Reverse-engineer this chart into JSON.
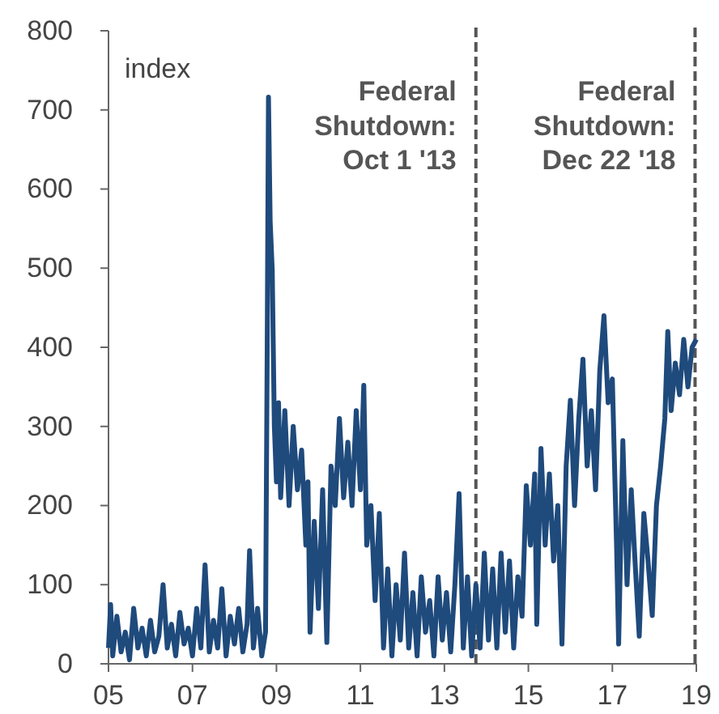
{
  "chart_data": {
    "type": "line",
    "ylabel": "index",
    "xlim": [
      2005,
      2019
    ],
    "xticks": [
      {
        "value": 2005,
        "label": "05"
      },
      {
        "value": 2007,
        "label": "07"
      },
      {
        "value": 2009,
        "label": "09"
      },
      {
        "value": 2011,
        "label": "11"
      },
      {
        "value": 2013,
        "label": "13"
      },
      {
        "value": 2015,
        "label": "15"
      },
      {
        "value": 2017,
        "label": "17"
      },
      {
        "value": 2019,
        "label": "19"
      }
    ],
    "ylim": [
      0,
      800
    ],
    "yticks": [
      0,
      100,
      200,
      300,
      400,
      500,
      600,
      700,
      800
    ],
    "grid": false,
    "x": [
      2005.0,
      2005.05,
      2005.1,
      2005.2,
      2005.3,
      2005.4,
      2005.5,
      2005.6,
      2005.7,
      2005.8,
      2005.9,
      2006.0,
      2006.1,
      2006.2,
      2006.3,
      2006.4,
      2006.5,
      2006.6,
      2006.7,
      2006.8,
      2006.9,
      2007.0,
      2007.1,
      2007.2,
      2007.3,
      2007.4,
      2007.5,
      2007.6,
      2007.7,
      2007.8,
      2007.9,
      2008.0,
      2008.1,
      2008.2,
      2008.3,
      2008.36,
      2008.45,
      2008.55,
      2008.65,
      2008.74,
      2008.78,
      2008.81,
      2008.85,
      2008.9,
      2008.95,
      2009.0,
      2009.05,
      2009.1,
      2009.2,
      2009.3,
      2009.4,
      2009.5,
      2009.6,
      2009.7,
      2009.75,
      2009.8,
      2009.9,
      2010.0,
      2010.1,
      2010.2,
      2010.3,
      2010.4,
      2010.5,
      2010.6,
      2010.7,
      2010.8,
      2010.9,
      2011.0,
      2011.08,
      2011.15,
      2011.25,
      2011.35,
      2011.45,
      2011.55,
      2011.65,
      2011.75,
      2011.85,
      2011.95,
      2012.05,
      2012.15,
      2012.25,
      2012.35,
      2012.45,
      2012.55,
      2012.65,
      2012.75,
      2012.85,
      2012.95,
      2013.05,
      2013.15,
      2013.25,
      2013.35,
      2013.45,
      2013.55,
      2013.65,
      2013.75,
      2013.85,
      2013.95,
      2014.05,
      2014.15,
      2014.25,
      2014.35,
      2014.45,
      2014.55,
      2014.65,
      2014.75,
      2014.85,
      2014.95,
      2015.05,
      2015.15,
      2015.2,
      2015.3,
      2015.4,
      2015.5,
      2015.6,
      2015.7,
      2015.8,
      2015.9,
      2016.0,
      2016.1,
      2016.2,
      2016.3,
      2016.4,
      2016.5,
      2016.6,
      2016.7,
      2016.8,
      2016.9,
      2017.0,
      2017.1,
      2017.15,
      2017.25,
      2017.35,
      2017.45,
      2017.55,
      2017.64,
      2017.75,
      2017.85,
      2017.95,
      2018.05,
      2018.15,
      2018.25,
      2018.32,
      2018.4,
      2018.5,
      2018.6,
      2018.7,
      2018.8,
      2018.9,
      2019.0
    ],
    "series": [
      {
        "color": "#1f4a7c",
        "values": [
          20,
          75,
          10,
          60,
          15,
          40,
          5,
          70,
          20,
          45,
          10,
          55,
          15,
          35,
          100,
          20,
          50,
          10,
          65,
          25,
          45,
          10,
          70,
          20,
          125,
          15,
          55,
          20,
          95,
          10,
          60,
          25,
          70,
          15,
          50,
          143,
          20,
          70,
          10,
          40,
          400,
          716,
          560,
          497,
          300,
          230,
          330,
          210,
          320,
          200,
          300,
          220,
          270,
          150,
          230,
          40,
          180,
          70,
          220,
          27,
          250,
          200,
          310,
          210,
          280,
          200,
          320,
          220,
          352,
          150,
          200,
          80,
          190,
          20,
          120,
          10,
          100,
          30,
          140,
          20,
          90,
          10,
          110,
          40,
          80,
          10,
          110,
          30,
          90,
          15,
          100,
          215,
          20,
          110,
          10,
          100,
          20,
          140,
          30,
          120,
          20,
          140,
          40,
          130,
          20,
          110,
          60,
          225,
          150,
          240,
          50,
          272,
          150,
          240,
          130,
          200,
          25,
          250,
          333,
          200,
          310,
          385,
          250,
          320,
          220,
          370,
          440,
          330,
          360,
          150,
          25,
          282,
          100,
          220,
          120,
          35,
          190,
          130,
          61,
          200,
          250,
          310,
          420,
          320,
          380,
          340,
          410,
          350,
          400,
          410
        ]
      }
    ],
    "ref_lines": [
      {
        "axis": "x",
        "value": 2013.75,
        "label": "Federal Shutdown: Oct 1 '13",
        "color": "#555555",
        "line_style": "dashed"
      },
      {
        "axis": "x",
        "value": 2018.97,
        "label": "Federal Shutdown: Dec 22 '18",
        "color": "#555555",
        "line_style": "dashed"
      }
    ]
  }
}
